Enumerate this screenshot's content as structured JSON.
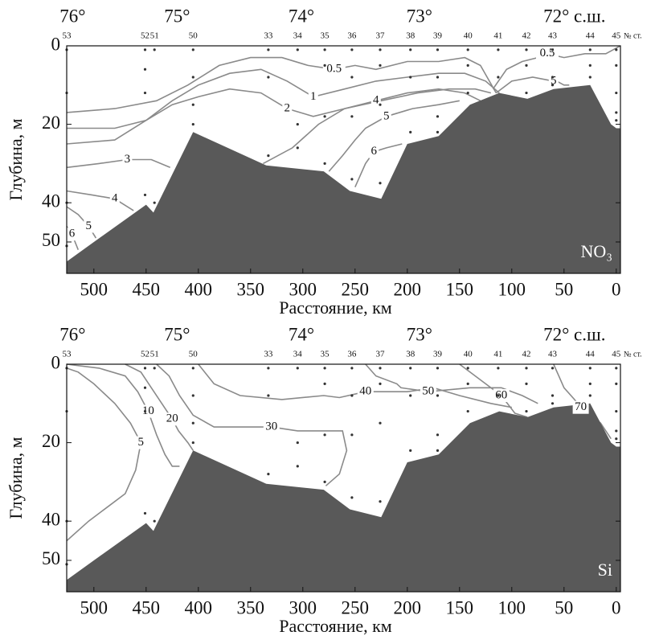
{
  "chart_data": [
    {
      "type": "contour",
      "parameter": "NO₃",
      "xlabel": "Расстояние, км",
      "ylabel": "Глубина, м",
      "xlim": [
        526,
        -4
      ],
      "ylim": [
        0,
        58
      ],
      "xticks": [
        500,
        450,
        400,
        350,
        300,
        250,
        200,
        150,
        100,
        50,
        0
      ],
      "yticks": [
        0,
        20,
        40,
        50
      ],
      "latitudes": {
        "labels": [
          "76°",
          "75°",
          "74°",
          "73°",
          "72° с.ш."
        ],
        "x": [
          522,
          422,
          303,
          190,
          59
        ]
      },
      "station_label": "№ ст.",
      "stations": {
        "labels": [
          "53",
          "52",
          "51",
          "50",
          "33",
          "34",
          "35",
          "36",
          "37",
          "38",
          "39",
          "40",
          "41",
          "42",
          "43",
          "44",
          "45"
        ],
        "x": [
          526,
          451,
          442,
          405,
          333,
          305,
          279,
          253,
          226,
          197,
          171,
          142,
          113,
          86,
          61,
          25,
          0
        ]
      },
      "samples": {
        "x": [
          526,
          526,
          526,
          526,
          451,
          451,
          451,
          451,
          442,
          442,
          405,
          405,
          405,
          405,
          333,
          333,
          333,
          305,
          305,
          305,
          279,
          279,
          279,
          279,
          253,
          253,
          253,
          253,
          226,
          226,
          226,
          226,
          197,
          197,
          197,
          171,
          171,
          171,
          171,
          142,
          142,
          142,
          113,
          113,
          86,
          86,
          86,
          61,
          61,
          61,
          25,
          25,
          25,
          0,
          0,
          0,
          0,
          0
        ],
        "y": [
          1,
          12,
          40,
          51,
          1,
          6,
          12,
          38,
          1,
          40,
          1,
          8,
          15,
          20,
          1,
          8,
          28,
          1,
          20,
          26,
          1,
          5,
          18,
          30,
          1,
          8,
          18,
          34,
          1,
          5,
          15,
          35,
          1,
          8,
          22,
          1,
          8,
          18,
          22,
          1,
          5,
          12,
          1,
          8,
          1,
          5,
          12,
          1,
          8,
          10,
          1,
          5,
          8,
          1,
          5,
          12,
          17,
          19
        ]
      },
      "bottom": {
        "color": "#595959",
        "x": [
          526,
          500,
          450,
          443,
          405,
          335,
          280,
          255,
          225,
          200,
          170,
          140,
          112,
          85,
          60,
          25,
          5,
          0,
          -4
        ],
        "depth": [
          55,
          50,
          40.5,
          42.5,
          22,
          30.5,
          32,
          37,
          39,
          25,
          23,
          15,
          12,
          13.5,
          11,
          10,
          20,
          21,
          21
        ]
      },
      "contour_color": "#8a8a8a",
      "contours": [
        {
          "label": "0.5",
          "x": [
            526,
            480,
            440,
            410,
            380,
            350,
            320,
            295,
            270,
            250,
            230,
            200,
            170,
            145,
            130,
            115
          ],
          "y": [
            17,
            16,
            14,
            10,
            5,
            3,
            3,
            5,
            6,
            5,
            6,
            4,
            4,
            3,
            5,
            12
          ]
        },
        {
          "label": "1",
          "x": [
            526,
            480,
            450,
            425,
            400,
            370,
            340,
            315,
            290,
            260,
            230,
            200,
            170,
            145,
            125,
            112
          ],
          "y": [
            21,
            21,
            19,
            14,
            10,
            7,
            6,
            9,
            13,
            11,
            9,
            8,
            7,
            7,
            9,
            12
          ]
        },
        {
          "label": "2",
          "x": [
            526,
            480,
            450,
            425,
            400,
            370,
            340,
            315,
            290,
            260,
            225,
            190,
            160,
            135,
            120
          ],
          "y": [
            25,
            24,
            19,
            15,
            13,
            11,
            12,
            16,
            18,
            16,
            14,
            12,
            11,
            11,
            12
          ]
        },
        {
          "label": "3",
          "x": [
            526,
            495,
            468,
            445,
            427
          ],
          "y": [
            31,
            30,
            29,
            29,
            31
          ]
        },
        {
          "label": "4",
          "x": [
            526,
            502,
            480,
            462
          ],
          "y": [
            37,
            38,
            39,
            42
          ]
        },
        {
          "label": "5",
          "x": [
            526,
            515,
            505,
            498
          ],
          "y": [
            41,
            43,
            46,
            49
          ]
        },
        {
          "label": "6",
          "x": [
            526,
            521,
            515
          ],
          "y": [
            46,
            48,
            52
          ]
        },
        {
          "label": "4",
          "x": [
            338,
            310,
            285,
            260,
            230,
            200,
            170,
            145,
            130
          ],
          "y": [
            30,
            26,
            20,
            16,
            14,
            12,
            11,
            12,
            14
          ]
        },
        {
          "label": "5",
          "x": [
            275,
            262,
            250,
            240,
            220,
            195,
            170,
            150
          ],
          "y": [
            32,
            28,
            24,
            21,
            18,
            16,
            15,
            14
          ]
        },
        {
          "label": "6",
          "x": [
            250,
            240,
            232,
            220,
            205
          ],
          "y": [
            36,
            30,
            27,
            26,
            25
          ]
        },
        {
          "label": "0.5",
          "x": [
            118,
            105,
            90,
            75,
            66,
            50,
            30,
            10,
            -4
          ],
          "y": [
            11,
            6,
            4,
            3,
            2,
            3,
            2,
            2,
            0
          ]
        },
        {
          "label": "5",
          "x": [
            115,
            100,
            80,
            60,
            57,
            50,
            45
          ],
          "y": [
            12,
            9,
            8,
            9,
            9,
            10,
            10
          ]
        }
      ]
    },
    {
      "type": "contour",
      "parameter": "Si",
      "xlabel": "Расстояние, км",
      "ylabel": "Глубина, м",
      "xlim": [
        526,
        -4
      ],
      "ylim": [
        0,
        58
      ],
      "xticks": [
        500,
        450,
        400,
        350,
        300,
        250,
        200,
        150,
        100,
        50,
        0
      ],
      "yticks": [
        0,
        20,
        40,
        50
      ],
      "latitudes": {
        "labels": [
          "76°",
          "75°",
          "74°",
          "73°",
          "72° с.ш."
        ],
        "x": [
          522,
          422,
          303,
          190,
          59
        ]
      },
      "station_label": "№ ст.",
      "stations": {
        "labels": [
          "53",
          "52",
          "51",
          "50",
          "33",
          "34",
          "35",
          "36",
          "37",
          "38",
          "39",
          "40",
          "41",
          "42",
          "43",
          "44",
          "45"
        ],
        "x": [
          526,
          451,
          442,
          405,
          333,
          305,
          279,
          253,
          226,
          197,
          171,
          142,
          113,
          86,
          61,
          25,
          0
        ]
      },
      "samples": {
        "x": [
          526,
          526,
          526,
          526,
          451,
          451,
          451,
          451,
          442,
          442,
          405,
          405,
          405,
          405,
          333,
          333,
          333,
          305,
          305,
          305,
          279,
          279,
          279,
          279,
          253,
          253,
          253,
          253,
          226,
          226,
          226,
          226,
          197,
          197,
          197,
          171,
          171,
          171,
          171,
          142,
          142,
          142,
          113,
          113,
          86,
          86,
          86,
          61,
          61,
          61,
          25,
          25,
          25,
          0,
          0,
          0,
          0,
          0
        ],
        "y": [
          1,
          12,
          40,
          51,
          1,
          6,
          12,
          38,
          1,
          40,
          1,
          8,
          15,
          20,
          1,
          8,
          28,
          1,
          20,
          26,
          1,
          5,
          18,
          30,
          1,
          8,
          18,
          34,
          1,
          5,
          15,
          35,
          1,
          8,
          22,
          1,
          8,
          18,
          22,
          1,
          5,
          12,
          1,
          8,
          1,
          5,
          12,
          1,
          8,
          10,
          1,
          5,
          8,
          1,
          5,
          12,
          17,
          19
        ]
      },
      "bottom": {
        "color": "#595959",
        "x": [
          526,
          500,
          450,
          443,
          405,
          335,
          280,
          255,
          225,
          200,
          170,
          140,
          112,
          85,
          60,
          25,
          5,
          0,
          -4
        ],
        "depth": [
          55,
          50,
          40.5,
          42.5,
          22,
          30.5,
          32,
          37,
          39,
          25,
          23,
          15,
          12,
          13.5,
          11,
          10,
          20,
          21,
          21
        ]
      },
      "contour_color": "#8a8a8a",
      "contours": [
        {
          "label": "5",
          "x": [
            526,
            505,
            485,
            470,
            460,
            455,
            465,
            480,
            500,
            515,
            526
          ],
          "y": [
            45,
            40,
            36,
            33,
            27,
            20,
            15,
            10,
            5,
            2,
            1
          ]
        },
        {
          "label": "10",
          "x": [
            526,
            495,
            470,
            458,
            448,
            440,
            432,
            425,
            418
          ],
          "y": [
            0,
            1,
            3,
            7,
            12,
            18,
            23,
            26,
            26
          ]
        },
        {
          "label": "20",
          "x": [
            470,
            455,
            445,
            435,
            425,
            419,
            410,
            405
          ],
          "y": [
            0,
            2,
            6,
            10,
            14,
            17,
            20,
            22
          ]
        },
        {
          "label": "30",
          "x": [
            440,
            428,
            418,
            405,
            385,
            360,
            330,
            305,
            282,
            262,
            258,
            265,
            278
          ],
          "y": [
            0,
            3,
            8,
            13,
            16,
            16,
            16,
            17,
            17,
            17,
            22,
            28,
            31
          ]
        },
        {
          "label": "40",
          "x": [
            400,
            385,
            360,
            320,
            280,
            265,
            240,
            200,
            175,
            150,
            120,
            100
          ],
          "y": [
            0,
            5,
            8,
            9,
            8,
            8.5,
            7,
            7,
            6,
            8,
            10,
            11
          ]
        },
        {
          "label": "50",
          "x": [
            240,
            230,
            210,
            206,
            180,
            140,
            110,
            90,
            75
          ],
          "y": [
            0,
            3,
            5,
            6,
            7,
            6,
            6,
            8,
            10
          ]
        },
        {
          "label": "60",
          "x": [
            150,
            130,
            110,
            97,
            85
          ],
          "y": [
            0,
            4,
            8,
            12.5,
            13.5
          ]
        },
        {
          "label": "70",
          "x": [
            60,
            55,
            50,
            40,
            34,
            25,
            15,
            5
          ],
          "y": [
            0,
            3,
            6,
            9,
            11,
            13,
            15,
            19
          ]
        }
      ]
    }
  ]
}
